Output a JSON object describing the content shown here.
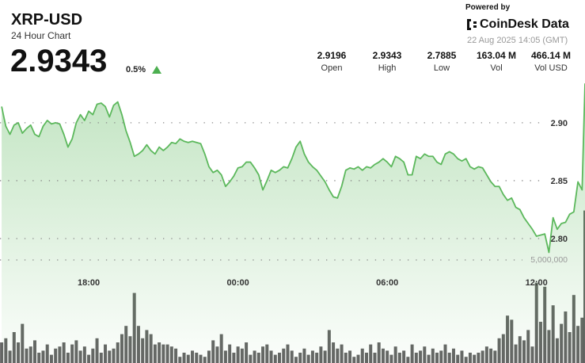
{
  "header": {
    "symbol": "XRP-USD",
    "subtitle": "24 Hour Chart",
    "price": "2.9343",
    "change": "0.5%",
    "powered_by": "Powered by",
    "brand": "CoinDesk Data",
    "timestamp": "22 Aug 2025 14:05 (GMT)"
  },
  "stats": [
    {
      "value": "2.9196",
      "label": "Open"
    },
    {
      "value": "2.9343",
      "label": "High"
    },
    {
      "value": "2.7885",
      "label": "Low"
    },
    {
      "value": "163.04 M",
      "label": "Vol"
    },
    {
      "value": "466.14 M",
      "label": "Vol USD"
    }
  ],
  "chart_data": {
    "type": "line",
    "x": [
      870,
      880,
      890,
      900,
      910,
      920,
      930,
      940,
      950,
      960,
      970,
      980,
      990,
      1000,
      1010,
      1020,
      1030,
      1040,
      1050,
      1060,
      1070,
      1080,
      1090,
      1100,
      1110,
      1120,
      1130,
      1140,
      1150,
      1160,
      1170,
      1180,
      1190,
      1200,
      1210,
      1220,
      1230,
      1240,
      1250,
      1260,
      1270,
      1280,
      1290,
      1300,
      1310,
      1320,
      1330,
      1340,
      1350,
      1360,
      1370,
      1380,
      1390,
      1400,
      1410,
      1420,
      1430,
      1440,
      1450,
      1460,
      1470,
      1480,
      1490,
      1500,
      1510,
      1520,
      1530,
      1540,
      1550,
      1560,
      1570,
      1580,
      1590,
      1600,
      1610,
      1620,
      1630,
      1640,
      1650,
      1660,
      1670,
      1680,
      1690,
      1700,
      1710,
      1720,
      1730,
      1740,
      1750,
      1760,
      1770,
      1780,
      1790,
      1800,
      1810,
      1820,
      1830,
      1840,
      1850,
      1860,
      1870,
      1880,
      1890,
      1900,
      1910,
      1920,
      1930,
      1940,
      1950,
      1960,
      1970,
      1980,
      1990,
      2000,
      2010,
      2020,
      2030,
      2040,
      2050,
      2060,
      2070,
      2080,
      2090,
      2100,
      2110,
      2120,
      2130,
      2140,
      2150,
      2160,
      2170,
      2180,
      2190,
      2200,
      2210,
      2220,
      2230,
      2240,
      2250,
      2260,
      2270,
      2277
    ],
    "series": [
      {
        "color": "#5cb85c",
        "values": [
          2.914,
          2.897,
          2.89,
          2.898,
          2.9,
          2.891,
          2.895,
          2.898,
          2.89,
          2.888,
          2.897,
          2.902,
          2.899,
          2.9,
          2.899,
          2.89,
          2.879,
          2.886,
          2.9,
          2.907,
          2.902,
          2.91,
          2.907,
          2.916,
          2.917,
          2.914,
          2.905,
          2.915,
          2.918,
          2.907,
          2.893,
          2.883,
          2.871,
          2.873,
          2.876,
          2.881,
          2.876,
          2.873,
          2.879,
          2.876,
          2.879,
          2.883,
          2.882,
          2.886,
          2.884,
          2.883,
          2.884,
          2.883,
          2.882,
          2.873,
          2.862,
          2.857,
          2.859,
          2.855,
          2.845,
          2.849,
          2.854,
          2.861,
          2.862,
          2.866,
          2.866,
          2.861,
          2.855,
          2.842,
          2.85,
          2.859,
          2.857,
          2.859,
          2.862,
          2.861,
          2.869,
          2.879,
          2.884,
          2.873,
          2.866,
          2.862,
          2.859,
          2.854,
          2.849,
          2.842,
          2.836,
          2.835,
          2.845,
          2.859,
          2.861,
          2.86,
          2.862,
          2.859,
          2.862,
          2.861,
          2.864,
          2.866,
          2.869,
          2.866,
          2.862,
          2.871,
          2.869,
          2.866,
          2.855,
          2.855,
          2.871,
          2.869,
          2.873,
          2.871,
          2.871,
          2.866,
          2.864,
          2.873,
          2.875,
          2.873,
          2.869,
          2.867,
          2.869,
          2.862,
          2.86,
          2.862,
          2.861,
          2.855,
          2.849,
          2.845,
          2.845,
          2.838,
          2.833,
          2.835,
          2.827,
          2.825,
          2.818,
          2.813,
          2.808,
          2.802,
          2.803,
          2.804,
          2.788,
          2.818,
          2.808,
          2.813,
          2.814,
          2.821,
          2.823,
          2.849,
          2.842,
          2.934
        ]
      },
      {
        "type": "bar",
        "axis": "y2",
        "color": "#4a4a4a",
        "values": [
          1000000,
          1200000,
          600000,
          1500000,
          1000000,
          1900000,
          700000,
          800000,
          1100000,
          500000,
          600000,
          900000,
          400000,
          700000,
          800000,
          1000000,
          500000,
          900000,
          1100000,
          600000,
          800000,
          400000,
          700000,
          1200000,
          500000,
          900000,
          600000,
          700000,
          1000000,
          1400000,
          1800000,
          1300000,
          3400000,
          1800000,
          1200000,
          1600000,
          1400000,
          900000,
          1000000,
          900000,
          900000,
          800000,
          700000,
          300000,
          500000,
          400000,
          600000,
          500000,
          400000,
          300000,
          600000,
          1100000,
          800000,
          1400000,
          600000,
          900000,
          500000,
          800000,
          700000,
          1000000,
          400000,
          600000,
          500000,
          800000,
          900000,
          600000,
          400000,
          500000,
          700000,
          900000,
          600000,
          300000,
          500000,
          700000,
          400000,
          600000,
          500000,
          800000,
          600000,
          1600000,
          1000000,
          700000,
          900000,
          500000,
          600000,
          300000,
          400000,
          700000,
          500000,
          900000,
          500000,
          1000000,
          700000,
          600000,
          400000,
          800000,
          500000,
          600000,
          300000,
          900000,
          500000,
          600000,
          800000,
          400000,
          700000,
          500000,
          600000,
          900000,
          500000,
          700000,
          400000,
          600000,
          300000,
          500000,
          400000,
          500000,
          600000,
          800000,
          700000,
          600000,
          1200000,
          1400000,
          2300000,
          2100000,
          900000,
          1300000,
          1100000,
          1600000,
          800000,
          3900000,
          2000000,
          3700000,
          1600000,
          2800000,
          1200000,
          1900000,
          2500000,
          1500000,
          3300000,
          1800000,
          2200000,
          7400000
        ]
      }
    ],
    "xlim": [
      866,
      2277
    ],
    "xticks": [
      {
        "value": 1080,
        "label": "18:00"
      },
      {
        "value": 1440,
        "label": "00:00"
      },
      {
        "value": 1800,
        "label": "06:00"
      },
      {
        "value": 2160,
        "label": "12:00"
      }
    ],
    "ylim": [
      2.6925,
      2.941
    ],
    "yticks": [
      {
        "value": 2.8,
        "label": "2.80"
      },
      2.85,
      {
        "value": 2.9,
        "label": "2.90"
      }
    ],
    "y2lim": [
      0,
      13960000
    ],
    "y2ticks": [
      {
        "value": 5000000,
        "label": "5,000,000"
      }
    ],
    "grid": true
  }
}
